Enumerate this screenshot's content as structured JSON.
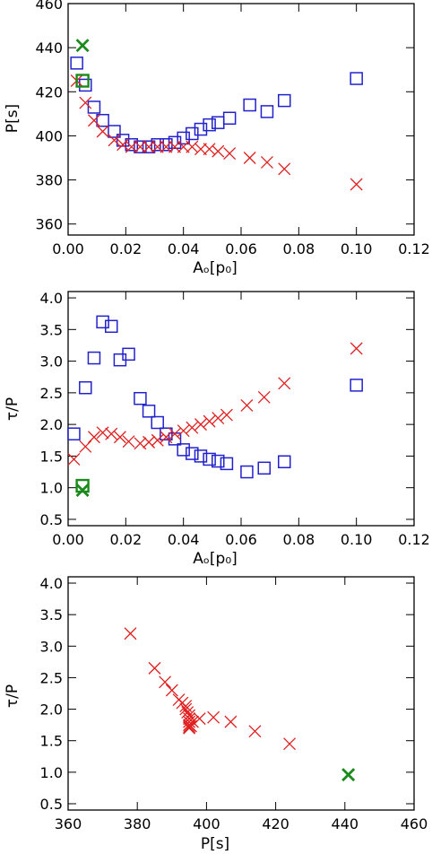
{
  "colors": {
    "squares": "#2222cc",
    "crosses": "#e02020",
    "special": "#1a8a1a",
    "axis": "#000000"
  },
  "chart_data": [
    {
      "type": "scatter",
      "xlabel": "Aₒ[p₀]",
      "ylabel": "P[s]",
      "xlim": [
        0.0,
        0.12
      ],
      "ylim": [
        355,
        460
      ],
      "xticks": [
        0.0,
        0.02,
        0.04,
        0.06,
        0.08,
        0.1,
        0.12
      ],
      "xtick_labels": [
        "0.00",
        "0.02",
        "0.04",
        "0.06",
        "0.08",
        "0.10",
        "0.12"
      ],
      "yticks": [
        360,
        380,
        400,
        420,
        440,
        460
      ],
      "ytick_labels": [
        "360",
        "380",
        "400",
        "420",
        "440",
        "460"
      ],
      "grid": false,
      "series": [
        {
          "marker": "square",
          "color": "#2222cc",
          "x": [
            0.003,
            0.006,
            0.009,
            0.012,
            0.016,
            0.019,
            0.022,
            0.025,
            0.028,
            0.031,
            0.034,
            0.037,
            0.04,
            0.043,
            0.046,
            0.049,
            0.052,
            0.056,
            0.063,
            0.069,
            0.075,
            0.1
          ],
          "y": [
            433,
            423,
            413,
            407,
            402,
            398,
            396,
            395,
            395,
            396,
            396,
            397,
            399,
            401,
            403,
            405,
            406,
            408,
            414,
            411,
            416,
            426
          ]
        },
        {
          "marker": "cross",
          "color": "#e02020",
          "x": [
            0.003,
            0.006,
            0.009,
            0.012,
            0.016,
            0.019,
            0.022,
            0.025,
            0.028,
            0.031,
            0.034,
            0.037,
            0.04,
            0.043,
            0.046,
            0.049,
            0.052,
            0.056,
            0.063,
            0.069,
            0.075,
            0.1
          ],
          "y": [
            425,
            415,
            407,
            402,
            398,
            396,
            395,
            395,
            395,
            395,
            395,
            395,
            395,
            395,
            394,
            394,
            393,
            392,
            390,
            388,
            385,
            378
          ]
        },
        {
          "marker": "square",
          "color": "#1a8a1a",
          "x": [
            0.005
          ],
          "y": [
            425
          ]
        },
        {
          "marker": "cross",
          "color": "#1a8a1a",
          "x": [
            0.005
          ],
          "y": [
            441
          ]
        }
      ]
    },
    {
      "type": "scatter",
      "xlabel": "Aₒ[p₀]",
      "ylabel": "τ/P",
      "xlim": [
        0.0,
        0.12
      ],
      "ylim": [
        0.4,
        4.1
      ],
      "xticks": [
        0.0,
        0.02,
        0.04,
        0.06,
        0.08,
        0.1,
        0.12
      ],
      "xtick_labels": [
        "0.00",
        "0.02",
        "0.04",
        "0.06",
        "0.08",
        "0.10",
        "0.12"
      ],
      "yticks": [
        0.5,
        1.0,
        1.5,
        2.0,
        2.5,
        3.0,
        3.5,
        4.0
      ],
      "ytick_labels": [
        "0.5",
        "1.0",
        "1.5",
        "2.0",
        "2.5",
        "3.0",
        "3.5",
        "4.0"
      ],
      "grid": false,
      "series": [
        {
          "marker": "square",
          "color": "#2222cc",
          "x": [
            0.002,
            0.006,
            0.009,
            0.012,
            0.015,
            0.018,
            0.021,
            0.025,
            0.028,
            0.031,
            0.034,
            0.037,
            0.04,
            0.043,
            0.046,
            0.049,
            0.052,
            0.055,
            0.062,
            0.068,
            0.075,
            0.1
          ],
          "y": [
            1.85,
            2.58,
            3.05,
            3.62,
            3.55,
            3.02,
            3.11,
            2.41,
            2.21,
            2.03,
            1.85,
            1.77,
            1.6,
            1.54,
            1.5,
            1.45,
            1.42,
            1.38,
            1.25,
            1.31,
            1.41,
            2.62
          ]
        },
        {
          "marker": "cross",
          "color": "#e02020",
          "x": [
            0.002,
            0.006,
            0.009,
            0.012,
            0.015,
            0.018,
            0.021,
            0.025,
            0.028,
            0.031,
            0.034,
            0.037,
            0.04,
            0.043,
            0.046,
            0.049,
            0.052,
            0.055,
            0.062,
            0.068,
            0.075,
            0.1
          ],
          "y": [
            1.45,
            1.65,
            1.8,
            1.87,
            1.85,
            1.8,
            1.73,
            1.7,
            1.72,
            1.75,
            1.8,
            1.85,
            1.9,
            1.95,
            2.0,
            2.05,
            2.1,
            2.15,
            2.3,
            2.43,
            2.65,
            3.2
          ]
        },
        {
          "marker": "square",
          "color": "#1a8a1a",
          "x": [
            0.005
          ],
          "y": [
            1.03
          ]
        },
        {
          "marker": "cross",
          "color": "#1a8a1a",
          "x": [
            0.005
          ],
          "y": [
            0.96
          ]
        }
      ]
    },
    {
      "type": "scatter",
      "xlabel": "P[s]",
      "ylabel": "τ/P",
      "xlim": [
        360,
        460
      ],
      "ylim": [
        0.4,
        4.1
      ],
      "xticks": [
        360,
        380,
        400,
        420,
        440,
        460
      ],
      "xtick_labels": [
        "360",
        "380",
        "400",
        "420",
        "440",
        "460"
      ],
      "yticks": [
        0.5,
        1.0,
        1.5,
        2.0,
        2.5,
        3.0,
        3.5,
        4.0
      ],
      "ytick_labels": [
        "0.5",
        "1.0",
        "1.5",
        "2.0",
        "2.5",
        "3.0",
        "3.5",
        "4.0"
      ],
      "grid": false,
      "series": [
        {
          "marker": "cross",
          "color": "#e02020",
          "x": [
            378,
            385,
            388,
            390,
            392,
            393,
            394,
            394,
            394.5,
            395,
            395,
            395,
            395,
            395,
            395,
            395.5,
            396,
            398,
            402,
            407,
            414,
            424
          ],
          "y": [
            3.2,
            2.65,
            2.43,
            2.3,
            2.15,
            2.1,
            2.05,
            2.0,
            1.95,
            1.9,
            1.85,
            1.8,
            1.75,
            1.72,
            1.7,
            1.73,
            1.8,
            1.85,
            1.87,
            1.8,
            1.65,
            1.45
          ]
        },
        {
          "marker": "cross",
          "color": "#1a8a1a",
          "x": [
            441
          ],
          "y": [
            0.96
          ]
        }
      ]
    }
  ]
}
